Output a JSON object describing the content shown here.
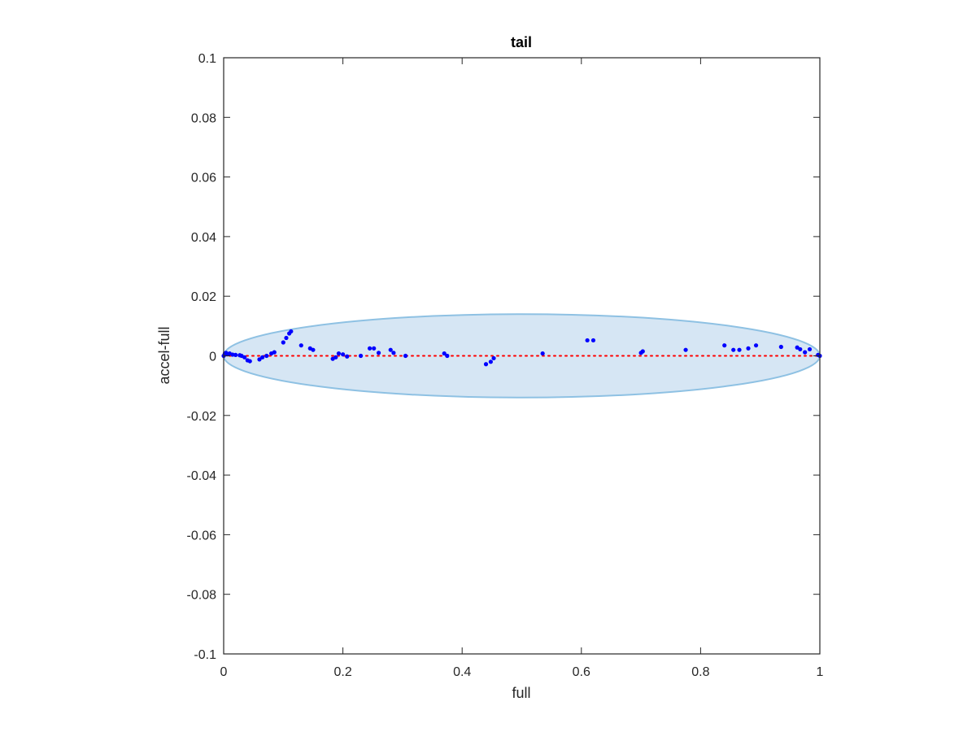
{
  "chart_data": {
    "type": "scatter",
    "title": "tail",
    "xlabel": "full",
    "ylabel": "accel-full",
    "xlim": [
      0,
      1
    ],
    "ylim": [
      -0.1,
      0.1
    ],
    "xticks": [
      0,
      0.2,
      0.4,
      0.6,
      0.8,
      1
    ],
    "xtick_labels": [
      "0",
      "0.2",
      "0.4",
      "0.6",
      "0.8",
      "1"
    ],
    "yticks": [
      -0.1,
      -0.08,
      -0.06,
      -0.04,
      -0.02,
      0,
      0.02,
      0.04,
      0.06,
      0.08,
      0.1
    ],
    "ytick_labels": [
      "-0.1",
      "-0.08",
      "-0.06",
      "-0.04",
      "-0.02",
      "0",
      "0.02",
      "0.04",
      "0.06",
      "0.08",
      "0.1"
    ],
    "grid": false,
    "reference_line": {
      "y": 0,
      "color": "#ff0000",
      "style": "dotted"
    },
    "ellipse": {
      "center_x": 0.5,
      "center_y": 0.0,
      "semi_x": 0.5,
      "semi_y": 0.014,
      "fill": "#d6e6f4",
      "stroke": "#8ec1e3"
    },
    "series": [
      {
        "color": "#0000ff",
        "points": [
          [
            0.0,
            0.0
          ],
          [
            0.002,
            0.0008
          ],
          [
            0.004,
            0.001
          ],
          [
            0.006,
            0.0005
          ],
          [
            0.01,
            0.0008
          ],
          [
            0.015,
            0.0004
          ],
          [
            0.02,
            0.0003
          ],
          [
            0.027,
            0.0002
          ],
          [
            0.03,
            0.0
          ],
          [
            0.035,
            -0.0005
          ],
          [
            0.04,
            -0.0015
          ],
          [
            0.044,
            -0.0018
          ],
          [
            0.06,
            -0.0012
          ],
          [
            0.065,
            -0.0005
          ],
          [
            0.072,
            0.0
          ],
          [
            0.08,
            0.0008
          ],
          [
            0.085,
            0.0012
          ],
          [
            0.1,
            0.0045
          ],
          [
            0.105,
            0.006
          ],
          [
            0.11,
            0.0075
          ],
          [
            0.113,
            0.0082
          ],
          [
            0.13,
            0.0035
          ],
          [
            0.145,
            0.0025
          ],
          [
            0.15,
            0.002
          ],
          [
            0.183,
            -0.001
          ],
          [
            0.188,
            -0.0005
          ],
          [
            0.193,
            0.0008
          ],
          [
            0.2,
            0.0005
          ],
          [
            0.207,
            -0.0002
          ],
          [
            0.23,
            0.0
          ],
          [
            0.245,
            0.0025
          ],
          [
            0.252,
            0.0025
          ],
          [
            0.26,
            0.001
          ],
          [
            0.28,
            0.002
          ],
          [
            0.285,
            0.001
          ],
          [
            0.305,
            0.0
          ],
          [
            0.37,
            0.0008
          ],
          [
            0.375,
            0.0
          ],
          [
            0.44,
            -0.0028
          ],
          [
            0.448,
            -0.002
          ],
          [
            0.453,
            -0.0008
          ],
          [
            0.535,
            0.0008
          ],
          [
            0.61,
            0.0052
          ],
          [
            0.62,
            0.0052
          ],
          [
            0.7,
            0.001
          ],
          [
            0.703,
            0.0015
          ],
          [
            0.775,
            0.002
          ],
          [
            0.84,
            0.0035
          ],
          [
            0.855,
            0.002
          ],
          [
            0.865,
            0.002
          ],
          [
            0.88,
            0.0025
          ],
          [
            0.893,
            0.0035
          ],
          [
            0.935,
            0.003
          ],
          [
            0.962,
            0.0028
          ],
          [
            0.967,
            0.0022
          ],
          [
            0.975,
            0.0012
          ],
          [
            0.983,
            0.0022
          ],
          [
            0.997,
            0.0003
          ],
          [
            1.0,
            0.0
          ]
        ]
      }
    ]
  }
}
